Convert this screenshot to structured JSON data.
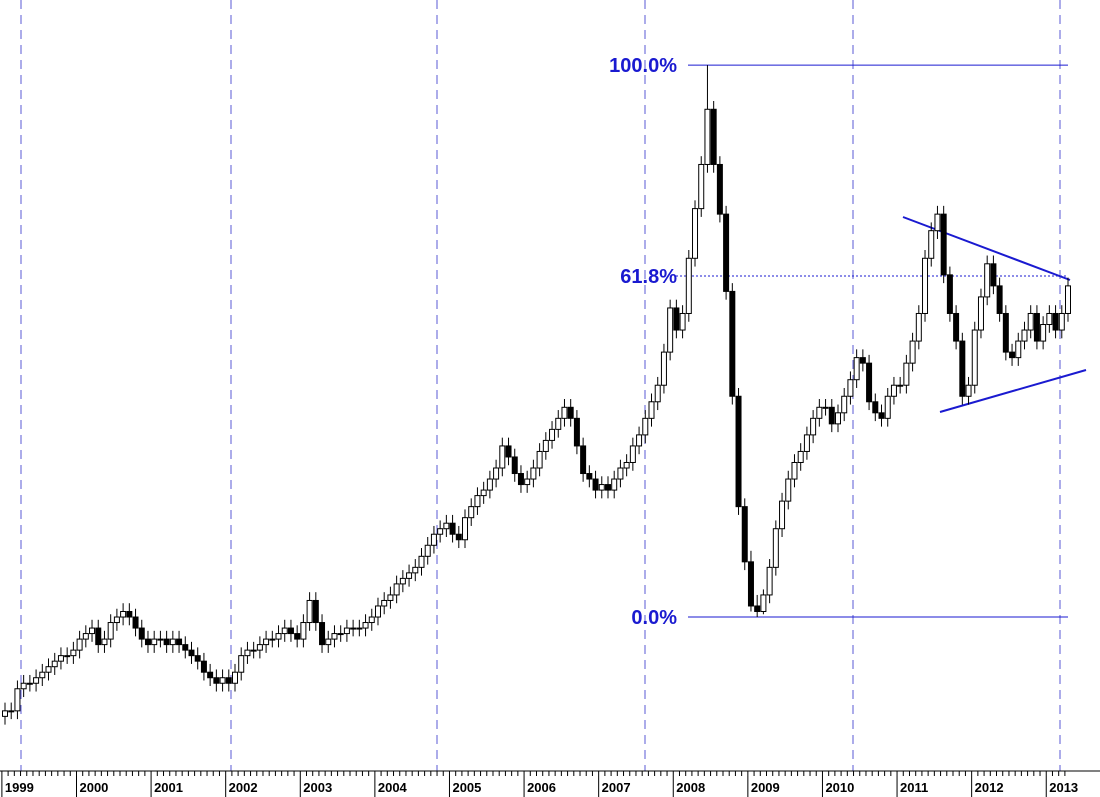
{
  "chart_data": {
    "type": "candlestick",
    "categories": [
      "1999",
      null,
      null,
      null,
      null,
      null,
      null,
      null,
      null,
      null,
      null,
      null,
      "2000",
      null,
      null,
      null,
      null,
      null,
      null,
      null,
      null,
      null,
      null,
      null,
      "2001",
      null,
      null,
      null,
      null,
      null,
      null,
      null,
      null,
      null,
      null,
      null,
      "2002",
      null,
      null,
      null,
      null,
      null,
      null,
      null,
      null,
      null,
      null,
      null,
      "2003",
      null,
      null,
      null,
      null,
      null,
      null,
      null,
      null,
      null,
      null,
      null,
      "2004",
      null,
      null,
      null,
      null,
      null,
      null,
      null,
      null,
      null,
      null,
      null,
      "2005",
      null,
      null,
      null,
      null,
      null,
      null,
      null,
      null,
      null,
      null,
      null,
      "2006",
      null,
      null,
      null,
      null,
      null,
      null,
      null,
      null,
      null,
      null,
      null,
      "2007",
      null,
      null,
      null,
      null,
      null,
      null,
      null,
      null,
      null,
      null,
      null,
      "2008",
      null,
      null,
      null,
      null,
      null,
      null,
      null,
      null,
      null,
      null,
      null,
      "2009",
      null,
      null,
      null,
      null,
      null,
      null,
      null,
      null,
      null,
      null,
      null,
      "2010",
      null,
      null,
      null,
      null,
      null,
      null,
      null,
      null,
      null,
      null,
      null,
      "2011",
      null,
      null,
      null,
      null,
      null,
      null,
      null,
      null,
      null,
      null,
      null,
      "2012",
      null,
      null,
      null,
      null,
      null,
      null,
      null,
      null,
      null,
      null,
      null,
      "2013",
      null,
      null,
      null
    ],
    "candles": [
      [
        -18,
        -15.5,
        -19.5,
        -17
      ],
      [
        -17,
        -15.5,
        -18.5,
        -17
      ],
      [
        -17,
        -11.5,
        -18.5,
        -13
      ],
      [
        -13,
        -10.5,
        -14.5,
        -12
      ],
      [
        -12,
        -10.5,
        -13.5,
        -12
      ],
      [
        -12,
        -9.5,
        -13.5,
        -11
      ],
      [
        -11,
        -8.5,
        -12.5,
        -10
      ],
      [
        -10,
        -7.5,
        -11.5,
        -9
      ],
      [
        -9,
        -6.5,
        -10.5,
        -8
      ],
      [
        -8,
        -5.5,
        -9.5,
        -7
      ],
      [
        -7,
        -5.5,
        -8.5,
        -7
      ],
      [
        -7,
        -4.5,
        -8.5,
        -6
      ],
      [
        -6,
        -2.5,
        -7.5,
        -4
      ],
      [
        -4,
        -1.5,
        -5.5,
        -3
      ],
      [
        -3,
        -0.5,
        -4.5,
        -2
      ],
      [
        -2,
        -0.5,
        -6.5,
        -5
      ],
      [
        -5,
        -2.5,
        -6.5,
        -4
      ],
      [
        -4,
        0.5,
        -5.5,
        -1
      ],
      [
        -1,
        1.5,
        -2.5,
        0
      ],
      [
        0,
        2.5,
        -1.5,
        1
      ],
      [
        1,
        2.5,
        -1.5,
        0
      ],
      [
        0,
        1.5,
        -3.5,
        -2
      ],
      [
        -2,
        -0.5,
        -5.5,
        -4
      ],
      [
        -4,
        -2.5,
        -6.5,
        -5
      ],
      [
        -5,
        -2.5,
        -6.5,
        -4
      ],
      [
        -4,
        -2.5,
        -5.5,
        -4
      ],
      [
        -4,
        -2.5,
        -6.5,
        -5
      ],
      [
        -5,
        -2.5,
        -6.5,
        -4
      ],
      [
        -4,
        -2.5,
        -6.5,
        -5
      ],
      [
        -5,
        -3.5,
        -7.5,
        -6
      ],
      [
        -6,
        -4.5,
        -8.5,
        -7
      ],
      [
        -7,
        -5.5,
        -9.5,
        -8
      ],
      [
        -8,
        -6.5,
        -11.5,
        -10
      ],
      [
        -10,
        -8.5,
        -12.5,
        -11
      ],
      [
        -11,
        -9.5,
        -13.5,
        -12
      ],
      [
        -12,
        -9.5,
        -13.5,
        -11
      ],
      [
        -11,
        -9.5,
        -13.5,
        -12
      ],
      [
        -12,
        -8.5,
        -13.5,
        -10
      ],
      [
        -10,
        -5.5,
        -11.5,
        -7
      ],
      [
        -7,
        -4.5,
        -8.5,
        -6
      ],
      [
        -6,
        -4.5,
        -7.5,
        -6
      ],
      [
        -6,
        -3.5,
        -7.5,
        -5
      ],
      [
        -5,
        -2.5,
        -6.5,
        -4
      ],
      [
        -4,
        -2.5,
        -5.5,
        -4
      ],
      [
        -4,
        -1.5,
        -5.5,
        -3
      ],
      [
        -3,
        -0.5,
        -4.5,
        -2
      ],
      [
        -2,
        -0.5,
        -4.5,
        -3
      ],
      [
        -3,
        -1.5,
        -5.5,
        -4
      ],
      [
        -4,
        0.5,
        -5.5,
        -1
      ],
      [
        -1,
        4.5,
        -2.5,
        3
      ],
      [
        3,
        4.5,
        -2.5,
        -1
      ],
      [
        -1,
        0.5,
        -6.5,
        -5
      ],
      [
        -5,
        -2.5,
        -6.5,
        -4
      ],
      [
        -4,
        -1.5,
        -5.5,
        -3
      ],
      [
        -3,
        -1.5,
        -4.5,
        -3
      ],
      [
        -3,
        -0.5,
        -4.5,
        -2
      ],
      [
        -2,
        -0.5,
        -3.5,
        -2
      ],
      [
        -2,
        -0.5,
        -3.5,
        -2
      ],
      [
        -2,
        0.5,
        -3.5,
        -1
      ],
      [
        -1,
        1.5,
        -2.5,
        0
      ],
      [
        0,
        3.5,
        -1.5,
        2
      ],
      [
        2,
        4.5,
        0.5,
        3
      ],
      [
        3,
        5.5,
        1.5,
        4
      ],
      [
        4,
        7.5,
        2.5,
        6
      ],
      [
        6,
        8.5,
        4.5,
        7
      ],
      [
        7,
        9.5,
        5.5,
        8
      ],
      [
        8,
        10.5,
        6.5,
        9
      ],
      [
        9,
        12.5,
        7.5,
        11
      ],
      [
        11,
        14.5,
        9.5,
        13
      ],
      [
        13,
        16.5,
        11.5,
        15
      ],
      [
        15,
        17.5,
        13.5,
        16
      ],
      [
        16,
        18.5,
        14.5,
        17
      ],
      [
        17,
        18.5,
        13.5,
        15
      ],
      [
        15,
        16.5,
        12.5,
        14
      ],
      [
        14,
        19.5,
        12.5,
        18
      ],
      [
        18,
        21.5,
        16.5,
        20
      ],
      [
        20,
        23.5,
        18.5,
        22
      ],
      [
        22,
        24.5,
        20.5,
        23
      ],
      [
        23,
        26.5,
        21.5,
        25
      ],
      [
        25,
        28.5,
        23.5,
        27
      ],
      [
        27,
        32.5,
        25.5,
        31
      ],
      [
        31,
        32.5,
        27.5,
        29
      ],
      [
        29,
        30.5,
        24.5,
        26
      ],
      [
        26,
        27.5,
        22.5,
        24
      ],
      [
        24,
        26.5,
        22.5,
        25
      ],
      [
        25,
        28.5,
        23.5,
        27
      ],
      [
        27,
        31.5,
        25.5,
        30
      ],
      [
        30,
        33.5,
        28.5,
        32
      ],
      [
        32,
        35.5,
        30.5,
        34
      ],
      [
        34,
        37.5,
        32.5,
        36
      ],
      [
        36,
        39.5,
        34.5,
        38
      ],
      [
        38,
        39.5,
        34.5,
        36
      ],
      [
        36,
        37.5,
        29.5,
        31
      ],
      [
        31,
        32.5,
        24.5,
        26
      ],
      [
        26,
        27.5,
        23.5,
        25
      ],
      [
        25,
        26.5,
        21.5,
        23
      ],
      [
        23,
        25.5,
        21.5,
        24
      ],
      [
        24,
        25.5,
        21.5,
        23
      ],
      [
        23,
        26.5,
        21.5,
        25
      ],
      [
        25,
        28.5,
        23.5,
        27
      ],
      [
        27,
        29.5,
        25.5,
        28
      ],
      [
        28,
        32.5,
        26.5,
        31
      ],
      [
        31,
        34.5,
        29.5,
        33
      ],
      [
        33,
        37.5,
        31.5,
        36
      ],
      [
        36,
        40.5,
        34.5,
        39
      ],
      [
        39,
        43.5,
        37.5,
        42
      ],
      [
        42,
        49.5,
        40.5,
        48
      ],
      [
        48,
        57.5,
        46.5,
        56
      ],
      [
        56,
        57.5,
        50.5,
        52
      ],
      [
        52,
        56.5,
        50.5,
        55
      ],
      [
        55,
        66.5,
        53.5,
        65
      ],
      [
        65,
        75.5,
        63.5,
        74
      ],
      [
        74,
        83.5,
        72.5,
        82
      ],
      [
        82,
        100,
        80.5,
        92
      ],
      [
        92,
        93.5,
        80.5,
        82
      ],
      [
        82,
        83.5,
        71.5,
        73
      ],
      [
        73,
        74.5,
        57.5,
        59
      ],
      [
        59,
        60.5,
        38.5,
        40
      ],
      [
        40,
        41.5,
        18.5,
        20
      ],
      [
        20,
        21.5,
        8.5,
        10
      ],
      [
        10,
        12,
        1,
        2
      ],
      [
        2,
        4,
        0,
        1
      ],
      [
        1,
        5,
        0.5,
        4
      ],
      [
        4,
        10.5,
        2.5,
        9
      ],
      [
        9,
        17.5,
        7.5,
        16
      ],
      [
        16,
        22.5,
        14.5,
        21
      ],
      [
        21,
        26.5,
        19.5,
        25
      ],
      [
        25,
        29.5,
        23.5,
        28
      ],
      [
        28,
        31.5,
        26.5,
        30
      ],
      [
        30,
        34.5,
        28.5,
        33
      ],
      [
        33,
        37.5,
        31.5,
        36
      ],
      [
        36,
        39.5,
        34.5,
        38
      ],
      [
        38,
        39.5,
        36.5,
        38
      ],
      [
        38,
        39.5,
        33.5,
        35
      ],
      [
        35,
        38.5,
        33.5,
        37
      ],
      [
        37,
        41.5,
        35.5,
        40
      ],
      [
        40,
        44.5,
        38.5,
        43
      ],
      [
        43,
        48.5,
        41.5,
        47
      ],
      [
        47,
        48.5,
        44.5,
        46
      ],
      [
        46,
        47.5,
        37.5,
        39
      ],
      [
        39,
        40.5,
        35.5,
        37
      ],
      [
        37,
        38.5,
        34.5,
        36
      ],
      [
        36,
        41.5,
        34.5,
        40
      ],
      [
        40,
        43.5,
        38.5,
        42
      ],
      [
        42,
        43.5,
        40.5,
        42
      ],
      [
        42,
        47.5,
        40.5,
        46
      ],
      [
        46,
        51.5,
        44.5,
        50
      ],
      [
        50,
        56.5,
        48.5,
        55
      ],
      [
        55,
        66.5,
        53.5,
        65
      ],
      [
        65,
        71.5,
        63.5,
        70
      ],
      [
        70,
        74.5,
        68.5,
        73
      ],
      [
        73,
        74.5,
        60.5,
        62
      ],
      [
        62,
        63.5,
        53.5,
        55
      ],
      [
        55,
        56.5,
        48.5,
        50
      ],
      [
        50,
        51.5,
        38.5,
        40
      ],
      [
        40,
        43.5,
        38.5,
        42
      ],
      [
        42,
        53.5,
        40.5,
        52
      ],
      [
        52,
        59.5,
        50.5,
        58
      ],
      [
        58,
        65.5,
        56.5,
        64
      ],
      [
        64,
        65.5,
        58.5,
        60
      ],
      [
        60,
        61.5,
        53.5,
        55
      ],
      [
        55,
        56.5,
        46.5,
        48
      ],
      [
        48,
        49.5,
        45.5,
        47
      ],
      [
        47,
        51.5,
        45.5,
        50
      ],
      [
        50,
        53.5,
        48.5,
        52
      ],
      [
        52,
        56.5,
        50.5,
        55
      ],
      [
        55,
        56.5,
        48.5,
        50
      ],
      [
        50,
        54.5,
        48.5,
        53
      ],
      [
        53,
        56.5,
        51.5,
        55
      ],
      [
        55,
        56.5,
        50.5,
        52
      ],
      [
        52,
        56.5,
        50.5,
        55
      ],
      [
        55,
        61.5,
        53.5,
        60
      ]
    ],
    "levels": [
      {
        "value": 100,
        "label": "100.0%"
      },
      {
        "value": 61.8,
        "label": "61.8%"
      },
      {
        "value": 0,
        "label": "0.0%"
      }
    ],
    "level_color": "#1a1ad0",
    "ylim": [
      -27.9,
      111.8
    ]
  }
}
